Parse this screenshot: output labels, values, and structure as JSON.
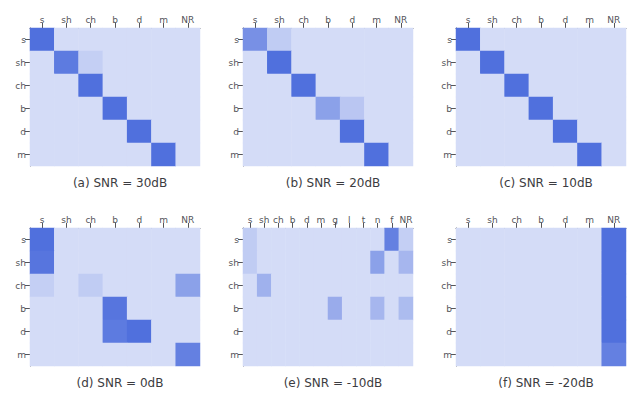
{
  "chart_data": [
    {
      "type": "heatmap",
      "title": "(a) SNR = 30dB",
      "grid": false,
      "categories": [
        "s",
        "sh",
        "ch",
        "b",
        "d",
        "m",
        "NR"
      ],
      "rows": [
        "s",
        "sh",
        "ch",
        "b",
        "d",
        "m"
      ],
      "color_range": [
        0,
        1
      ],
      "cells": [
        [
          1.0,
          0.0,
          0.0,
          0.0,
          0.0,
          0.0,
          0.0
        ],
        [
          0.0,
          0.9,
          0.12,
          0.0,
          0.0,
          0.0,
          0.0
        ],
        [
          0.0,
          0.0,
          1.0,
          0.0,
          0.0,
          0.0,
          0.0
        ],
        [
          0.0,
          0.0,
          0.0,
          1.0,
          0.0,
          0.0,
          0.0
        ],
        [
          0.0,
          0.0,
          0.0,
          0.0,
          1.0,
          0.0,
          0.0
        ],
        [
          0.0,
          0.0,
          0.0,
          0.0,
          0.0,
          1.0,
          0.0
        ]
      ]
    },
    {
      "type": "heatmap",
      "title": "(b) SNR = 20dB",
      "grid": false,
      "categories": [
        "s",
        "sh",
        "ch",
        "b",
        "d",
        "m",
        "NR"
      ],
      "rows": [
        "s",
        "sh",
        "ch",
        "b",
        "d",
        "m"
      ],
      "color_range": [
        0,
        1
      ],
      "cells": [
        [
          0.7,
          0.15,
          0.0,
          0.0,
          0.0,
          0.0,
          0.0
        ],
        [
          0.0,
          1.0,
          0.0,
          0.0,
          0.0,
          0.0,
          0.0
        ],
        [
          0.0,
          0.0,
          1.0,
          0.0,
          0.0,
          0.0,
          0.0
        ],
        [
          0.0,
          0.0,
          0.0,
          0.55,
          0.2,
          0.0,
          0.0
        ],
        [
          0.0,
          0.0,
          0.0,
          0.0,
          1.0,
          0.0,
          0.0
        ],
        [
          0.0,
          0.0,
          0.0,
          0.0,
          0.0,
          1.0,
          0.0
        ]
      ]
    },
    {
      "type": "heatmap",
      "title": "(c) SNR = 10dB",
      "grid": false,
      "categories": [
        "s",
        "sh",
        "ch",
        "b",
        "d",
        "m",
        "NR"
      ],
      "rows": [
        "s",
        "sh",
        "ch",
        "b",
        "d",
        "m"
      ],
      "color_range": [
        0,
        1
      ],
      "cells": [
        [
          1.0,
          0.0,
          0.0,
          0.0,
          0.0,
          0.0,
          0.0
        ],
        [
          0.0,
          1.0,
          0.0,
          0.0,
          0.0,
          0.0,
          0.0
        ],
        [
          0.0,
          0.0,
          1.0,
          0.0,
          0.0,
          0.0,
          0.0
        ],
        [
          0.0,
          0.0,
          0.0,
          1.0,
          0.0,
          0.0,
          0.0
        ],
        [
          0.0,
          0.0,
          0.0,
          0.0,
          1.0,
          0.0,
          0.0
        ],
        [
          0.0,
          0.0,
          0.0,
          0.0,
          0.0,
          1.0,
          0.0
        ]
      ]
    },
    {
      "type": "heatmap",
      "title": "(d) SNR = 0dB",
      "grid": false,
      "categories": [
        "s",
        "sh",
        "ch",
        "b",
        "d",
        "m",
        "NR"
      ],
      "rows": [
        "s",
        "sh",
        "ch",
        "b",
        "d",
        "m"
      ],
      "color_range": [
        0,
        1
      ],
      "cells": [
        [
          1.0,
          0.0,
          0.0,
          0.0,
          0.0,
          0.0,
          0.0
        ],
        [
          0.95,
          0.0,
          0.0,
          0.0,
          0.0,
          0.0,
          0.0
        ],
        [
          0.12,
          0.0,
          0.15,
          0.0,
          0.0,
          0.0,
          0.55
        ],
        [
          0.0,
          0.0,
          0.0,
          0.95,
          0.0,
          0.0,
          0.0
        ],
        [
          0.0,
          0.0,
          0.0,
          0.9,
          1.0,
          0.0,
          0.0
        ],
        [
          0.0,
          0.0,
          0.0,
          0.0,
          0.0,
          0.0,
          0.85
        ]
      ]
    },
    {
      "type": "heatmap",
      "title": "(e) SNR = -10dB",
      "grid": false,
      "categories": [
        "s",
        "sh",
        "ch",
        "b",
        "d",
        "m",
        "g",
        "l",
        "t",
        "n",
        "f",
        "NR"
      ],
      "rows": [
        "s",
        "sh",
        "ch",
        "b",
        "d",
        "m"
      ],
      "color_range": [
        0,
        1
      ],
      "cells": [
        [
          0.15,
          0.0,
          0.0,
          0.0,
          0.0,
          0.0,
          0.0,
          0.0,
          0.0,
          0.0,
          0.85,
          0.12
        ],
        [
          0.15,
          0.0,
          0.0,
          0.0,
          0.0,
          0.0,
          0.0,
          0.0,
          0.0,
          0.55,
          0.0,
          0.35
        ],
        [
          0.0,
          0.4,
          0.0,
          0.0,
          0.0,
          0.0,
          0.0,
          0.0,
          0.0,
          0.0,
          0.0,
          0.0
        ],
        [
          0.0,
          0.0,
          0.0,
          0.0,
          0.0,
          0.0,
          0.45,
          0.0,
          0.0,
          0.35,
          0.0,
          0.3
        ],
        [
          0.0,
          0.0,
          0.0,
          0.0,
          0.0,
          0.0,
          0.0,
          0.0,
          0.0,
          0.0,
          0.0,
          0.0
        ],
        [
          0.0,
          0.0,
          0.0,
          0.0,
          0.0,
          0.0,
          0.0,
          0.0,
          0.0,
          0.0,
          0.0,
          0.0
        ]
      ]
    },
    {
      "type": "heatmap",
      "title": "(f) SNR = -20dB",
      "grid": false,
      "categories": [
        "s",
        "sh",
        "ch",
        "b",
        "d",
        "m",
        "NR"
      ],
      "rows": [
        "s",
        "sh",
        "ch",
        "b",
        "d",
        "m"
      ],
      "color_range": [
        0,
        1
      ],
      "cells": [
        [
          0.0,
          0.0,
          0.0,
          0.0,
          0.0,
          0.0,
          1.0
        ],
        [
          0.0,
          0.0,
          0.0,
          0.0,
          0.0,
          0.0,
          1.0
        ],
        [
          0.0,
          0.0,
          0.0,
          0.0,
          0.0,
          0.0,
          1.0
        ],
        [
          0.0,
          0.0,
          0.0,
          0.0,
          0.0,
          0.0,
          1.0
        ],
        [
          0.0,
          0.0,
          0.0,
          0.0,
          0.0,
          0.0,
          1.0
        ],
        [
          0.0,
          0.0,
          0.0,
          0.0,
          0.0,
          0.0,
          0.85
        ]
      ]
    }
  ]
}
